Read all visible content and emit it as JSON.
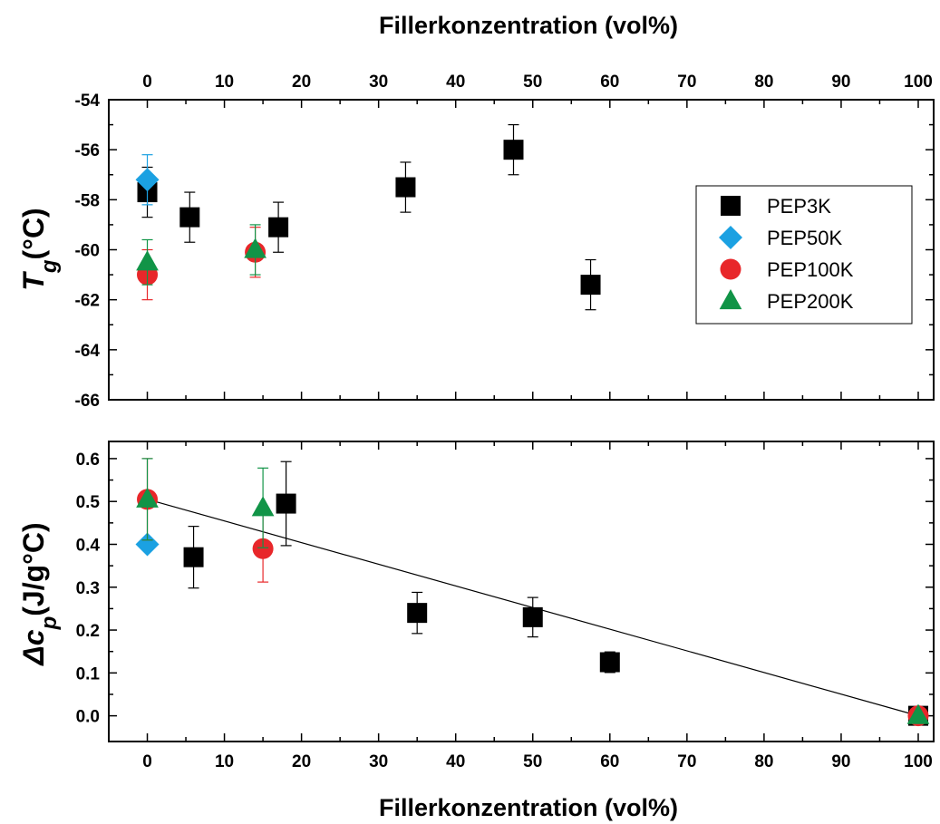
{
  "chart_data": [
    {
      "type": "scatter",
      "top_xlabel": "Fillerkonzentration (vol%)",
      "ylabel_main": "T",
      "ylabel_sub": "g",
      "ylabel_rest": "(°C)",
      "xlim": [
        -5,
        102
      ],
      "ylim": [
        -66,
        -54
      ],
      "xticks": [
        0,
        10,
        20,
        30,
        40,
        50,
        60,
        70,
        80,
        90,
        100
      ],
      "yticks": [
        -66,
        -64,
        -62,
        -60,
        -58,
        -56,
        -54
      ],
      "legend_position": "right",
      "series": [
        {
          "name": "PEP3K",
          "marker": "square",
          "color": "#000000",
          "x": [
            0,
            5.5,
            17,
            33.5,
            47.5,
            57.5
          ],
          "y": [
            -57.7,
            -58.7,
            -59.1,
            -57.5,
            -56.0,
            -61.4
          ],
          "err": [
            1.0,
            1.0,
            1.0,
            1.0,
            1.0,
            1.0
          ]
        },
        {
          "name": "PEP50K",
          "marker": "diamond",
          "color": "#1ba1e2",
          "x": [
            0
          ],
          "y": [
            -57.2
          ],
          "err": [
            1.0
          ]
        },
        {
          "name": "PEP100K",
          "marker": "circle",
          "color": "#e8272a",
          "x": [
            0,
            14
          ],
          "y": [
            -61.0,
            -60.1
          ],
          "err": [
            1.0,
            1.0
          ]
        },
        {
          "name": "PEP200K",
          "marker": "triangle",
          "color": "#119447",
          "x": [
            0,
            14
          ],
          "y": [
            -60.5,
            -60.0
          ],
          "err": [
            0.9,
            1.0
          ]
        }
      ]
    },
    {
      "type": "scatter",
      "xlabel": "Fillerkonzentration (vol%)",
      "ylabel_main": "Δc",
      "ylabel_sub": "p",
      "ylabel_rest": "(J/g°C)",
      "xlim": [
        -5,
        102
      ],
      "ylim": [
        -0.06,
        0.64
      ],
      "xticks": [
        0,
        10,
        20,
        30,
        40,
        50,
        60,
        70,
        80,
        90,
        100
      ],
      "yticks": [
        0.0,
        0.1,
        0.2,
        0.3,
        0.4,
        0.5,
        0.6
      ],
      "ytick_labels": [
        "0.0",
        "0.1",
        "0.2",
        "0.3",
        "0.4",
        "0.5",
        "0.6"
      ],
      "fit_line": {
        "x": [
          0,
          100
        ],
        "y": [
          0.505,
          0.0
        ]
      },
      "series": [
        {
          "name": "PEP3K",
          "marker": "square",
          "color": "#000000",
          "x": [
            6,
            18,
            35,
            50,
            60,
            100
          ],
          "y": [
            0.37,
            0.495,
            0.24,
            0.23,
            0.125,
            0.0
          ],
          "err": [
            0.072,
            0.098,
            0.048,
            0.046,
            0.024,
            0.0
          ]
        },
        {
          "name": "PEP50K",
          "marker": "diamond",
          "color": "#1ba1e2",
          "x": [
            0
          ],
          "y": [
            0.4
          ],
          "err": [
            0
          ]
        },
        {
          "name": "PEP100K",
          "marker": "circle",
          "color": "#e8272a",
          "x": [
            0,
            15,
            100
          ],
          "y": [
            0.505,
            0.39,
            0.0
          ],
          "err": [
            0.095,
            0.078,
            0.0
          ]
        },
        {
          "name": "PEP200K",
          "marker": "triangle",
          "color": "#119447",
          "x": [
            0,
            15,
            100
          ],
          "y": [
            0.505,
            0.485,
            0.0
          ],
          "err": [
            0.095,
            0.093,
            0.0
          ]
        }
      ]
    }
  ]
}
